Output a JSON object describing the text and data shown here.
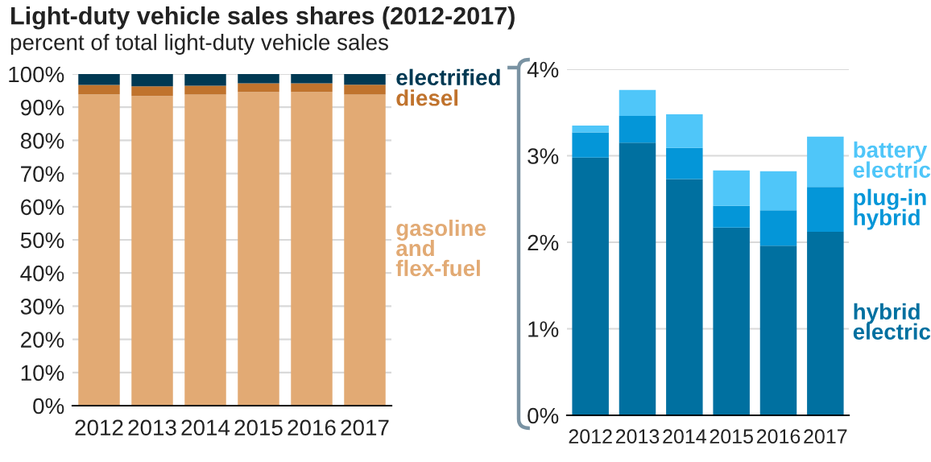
{
  "chart_data": [
    {
      "type": "bar",
      "title": "Light-duty vehicle sales shares (2012-2017)",
      "subtitle": "percent of total light-duty vehicle sales",
      "stacked": true,
      "categories": [
        "2012",
        "2013",
        "2014",
        "2015",
        "2016",
        "2017"
      ],
      "series": [
        {
          "name": "gasoline and flex-fuel",
          "color": "#e2aa74",
          "values": [
            93.9,
            93.4,
            93.8,
            94.6,
            94.6,
            93.8
          ]
        },
        {
          "name": "diesel",
          "color": "#c0732d",
          "values": [
            2.8,
            2.9,
            2.7,
            2.6,
            2.6,
            3.0
          ]
        },
        {
          "name": "electrified",
          "color": "#003953",
          "values": [
            3.4,
            3.8,
            3.5,
            2.8,
            2.8,
            3.2
          ]
        }
      ],
      "ylim": [
        0,
        100
      ],
      "yticks": [
        {
          "value": 0,
          "label": "0%"
        },
        {
          "value": 10,
          "label": "10%"
        },
        {
          "value": 20,
          "label": "20%"
        },
        {
          "value": 30,
          "label": "30%"
        },
        {
          "value": 40,
          "label": "40%"
        },
        {
          "value": 50,
          "label": "50%"
        },
        {
          "value": 60,
          "label": "60%"
        },
        {
          "value": 70,
          "label": "70%"
        },
        {
          "value": 80,
          "label": "80%"
        },
        {
          "value": 90,
          "label": "90%"
        },
        {
          "value": 100,
          "label": "100%"
        }
      ],
      "grid": "y",
      "legend": "right"
    },
    {
      "type": "bar",
      "stacked": true,
      "categories": [
        "2012",
        "2013",
        "2014",
        "2015",
        "2016",
        "2017"
      ],
      "series": [
        {
          "name": "hybrid electric",
          "color": "#0070a0",
          "values": [
            2.98,
            3.15,
            2.73,
            2.17,
            1.96,
            2.12
          ]
        },
        {
          "name": "plug-in hybrid",
          "color": "#0496d8",
          "values": [
            0.29,
            0.31,
            0.36,
            0.25,
            0.41,
            0.52
          ]
        },
        {
          "name": "battery electric",
          "color": "#4fc6f9",
          "values": [
            0.08,
            0.3,
            0.39,
            0.41,
            0.45,
            0.58
          ]
        }
      ],
      "ylim": [
        0,
        4
      ],
      "yticks": [
        {
          "value": 0,
          "label": "0%"
        },
        {
          "value": 1,
          "label": "1%"
        },
        {
          "value": 2,
          "label": "2%"
        },
        {
          "value": 3,
          "label": "3%"
        },
        {
          "value": 4,
          "label": "4%"
        }
      ],
      "grid": "y",
      "legend": "right"
    }
  ]
}
